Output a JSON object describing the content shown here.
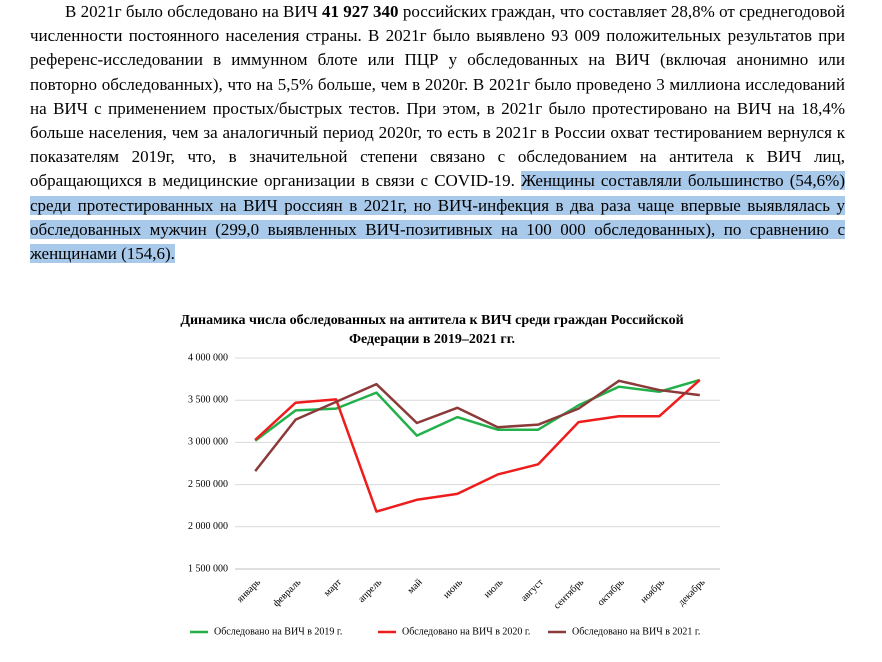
{
  "document": {
    "paragraph": [
      "В 2021г было обследовано на ВИЧ ",
      "41 927 340",
      " российских граждан, что составляет 28,8% от среднегодовой численности постоянного населения страны. В 2021г было выявлено 93 009 положительных результатов при референс-исследовании в иммунном блоте или ПЦР у обследованных на ВИЧ (включая анонимно или повторно обследованных), что на 5,5% больше, чем в 2020г. В 2021г было проведено 3 миллиона исследований на ВИЧ с применением простых/быстрых тестов. При этом, в 2021г было протестировано на ВИЧ на 18,4% больше населения, чем за аналогичный период 2020г, то есть в 2021г в России охват тестированием вернулся к показателям 2019г, что, в значительной степени связано с обследованием на антитела к ВИЧ лиц, обращающихся в медицинские организации в связи с COVID-19. ",
      "Женщины составляли большинство (54,6%) среди протестированных на ВИЧ россиян в 2021г, но ВИЧ-инфекция в два раза чаще впервые выявлялась у обследованных мужчин (299,0 выявленных ВИЧ-позитивных на 100 000 обследованных), по сравнению с женщинами (154,6)."
    ]
  },
  "chart_data": {
    "type": "line",
    "title": [
      "Динамика числа обследованных на антитела к ВИЧ среди граждан Российской",
      "Федерации в 2019–2021 гг."
    ],
    "categories": [
      "январь",
      "февраль",
      "март",
      "апрель",
      "май",
      "июнь",
      "июль",
      "август",
      "сентябрь",
      "октябрь",
      "ноябрь",
      "декабрь"
    ],
    "series": [
      {
        "name": "Обследовано на ВИЧ в 2019 г.",
        "color": "#22b04b",
        "values": [
          3020000,
          3380000,
          3400000,
          3590000,
          3080000,
          3300000,
          3150000,
          3150000,
          3440000,
          3660000,
          3600000,
          3740000
        ]
      },
      {
        "name": "Обследовано на ВИЧ в 2020 г.",
        "color": "#ee1c1c",
        "values": [
          3030000,
          3470000,
          3510000,
          2180000,
          2320000,
          2390000,
          2620000,
          2740000,
          3240000,
          3310000,
          3310000,
          3740000
        ]
      },
      {
        "name": "Обследовано на ВИЧ в 2021 г.",
        "color": "#8b3a3a",
        "values": [
          2660000,
          3270000,
          3480000,
          3690000,
          3230000,
          3410000,
          3180000,
          3210000,
          3400000,
          3730000,
          3620000,
          3560000
        ]
      }
    ],
    "ylim": [
      1500000,
      4000000
    ],
    "yticks": [
      {
        "value": 1500000,
        "label": "1 500 000"
      },
      {
        "value": 2000000,
        "label": "2 000 000"
      },
      {
        "value": 2500000,
        "label": "2 500 000"
      },
      {
        "value": 3000000,
        "label": "3 000 000"
      },
      {
        "value": 3500000,
        "label": "3 500 000"
      },
      {
        "value": 4000000,
        "label": "4 000 000"
      }
    ],
    "grid": true,
    "legend": "bottom"
  }
}
